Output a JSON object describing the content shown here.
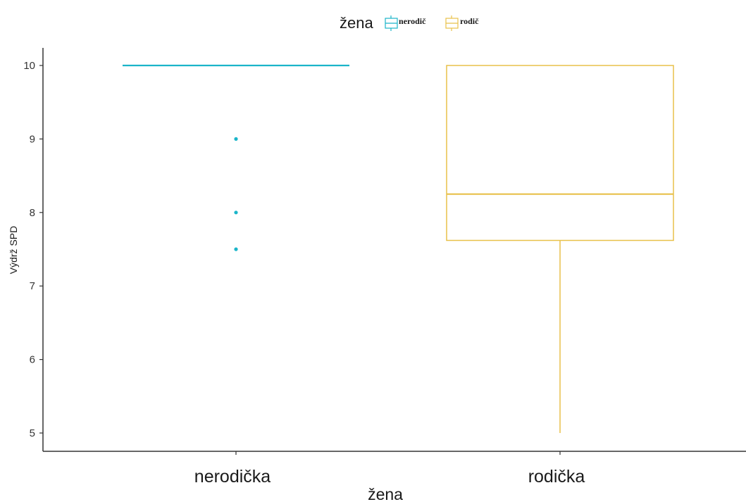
{
  "chart_data": {
    "type": "boxplot",
    "title": "",
    "xlabel": "žena",
    "ylabel": "Výdrž SPD",
    "ylim": [
      4.75,
      10.25
    ],
    "yticks": [
      5,
      6,
      7,
      8,
      9,
      10
    ],
    "categories": [
      "nerodička",
      "rodička"
    ],
    "legend": {
      "title": "žena",
      "position": "top",
      "entries": [
        "nerodič",
        "rodič"
      ]
    },
    "grid": false,
    "series": [
      {
        "name": "nerodič",
        "category": "nerodička",
        "color": "#1bb5c9",
        "min": 10,
        "q1": 10,
        "median": 10,
        "q3": 10,
        "max": 10,
        "outliers": [
          9,
          8,
          7.5
        ]
      },
      {
        "name": "rodič",
        "category": "rodička",
        "color": "#e8c14a",
        "min": 5,
        "q1": 7.62,
        "median": 8.25,
        "q3": 10,
        "max": 10,
        "outliers": []
      }
    ]
  }
}
